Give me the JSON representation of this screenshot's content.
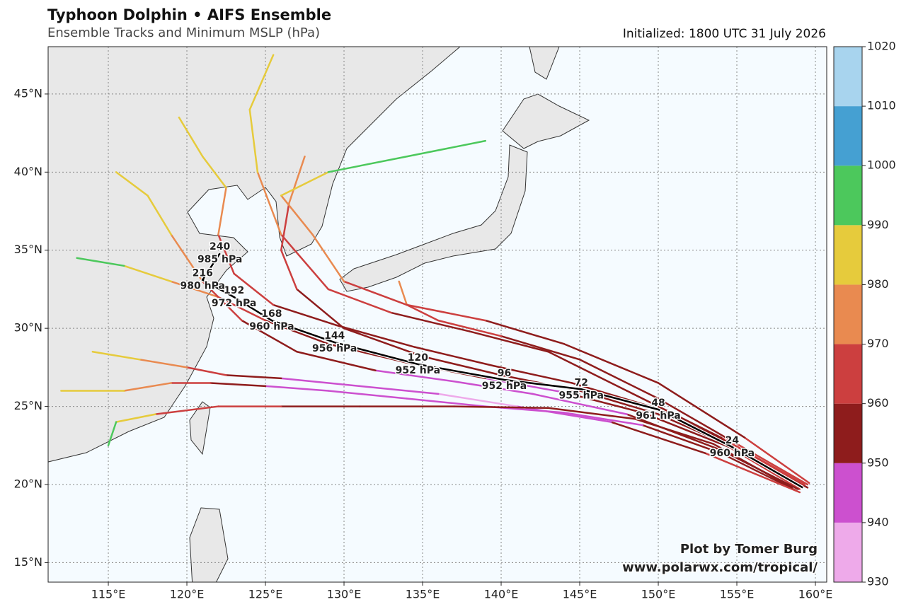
{
  "header": {
    "title": "Typhoon Dolphin • AIFS Ensemble",
    "subtitle": "Ensemble Tracks and Minimum MSLP (hPa)",
    "initialized": "Initialized: 1800 UTC 31 July 2026"
  },
  "credit": [
    "Plot by Tomer Burg",
    "www.polarwx.com/tropical/"
  ],
  "map": {
    "lon_range": [
      111.17,
      160.72
    ],
    "lat_range": [
      13.75,
      48.03
    ],
    "lon_ticks": [
      {
        "value": 115,
        "label": "115°E"
      },
      {
        "value": 120,
        "label": "120°E"
      },
      {
        "value": 125,
        "label": "125°E"
      },
      {
        "value": 130,
        "label": "130°E"
      },
      {
        "value": 135,
        "label": "135°E"
      },
      {
        "value": 140,
        "label": "140°E"
      },
      {
        "value": 145,
        "label": "145°E"
      },
      {
        "value": 150,
        "label": "150°E"
      },
      {
        "value": 155,
        "label": "155°E"
      },
      {
        "value": 160,
        "label": "160°E"
      }
    ],
    "lat_ticks": [
      {
        "value": 15,
        "label": "15°N"
      },
      {
        "value": 20,
        "label": "20°N"
      },
      {
        "value": 25,
        "label": "25°N"
      },
      {
        "value": 30,
        "label": "30°N"
      },
      {
        "value": 35,
        "label": "35°N"
      },
      {
        "value": 40,
        "label": "40°N"
      },
      {
        "value": 45,
        "label": "45°N"
      }
    ]
  },
  "colorbar": {
    "bounds": [
      930,
      940,
      950,
      960,
      970,
      980,
      990,
      1000,
      1010,
      1020
    ],
    "colors": [
      "#eeaaea",
      "#cc50cf",
      "#8e1c1c",
      "#cc3f3f",
      "#e98a50",
      "#e6cb3c",
      "#4cc85c",
      "#45a0d2",
      "#a8d4ee"
    ]
  },
  "ensemble": [
    {
      "lon": [
        159.5,
        155,
        150,
        145,
        140,
        135,
        130,
        127,
        126,
        126.5,
        127.5
      ],
      "lat": [
        19.8,
        22.3,
        24.5,
        26,
        27,
        28.2,
        30,
        32.5,
        35,
        38,
        41
      ],
      "pressure": [
        958,
        955,
        952,
        950,
        952,
        955,
        958,
        962,
        968,
        978,
        990
      ]
    },
    {
      "lon": [
        159.3,
        154,
        148,
        143,
        138,
        133,
        129,
        126,
        124.5,
        124,
        125.5
      ],
      "lat": [
        20,
        23,
        26,
        28.5,
        29.8,
        31,
        32.5,
        36,
        40,
        44,
        47.5
      ],
      "pressure": [
        960,
        955,
        952,
        955,
        958,
        962,
        968,
        975,
        983,
        988,
        985
      ]
    },
    {
      "lon": [
        159,
        154.5,
        149,
        144,
        139,
        134,
        129,
        125,
        122,
        119,
        116,
        113
      ],
      "lat": [
        19.7,
        22.4,
        24.6,
        25.9,
        26.8,
        27.8,
        29,
        30.5,
        32,
        33,
        34,
        34.5
      ],
      "pressure": [
        960,
        956,
        950,
        948,
        950,
        953,
        957,
        961,
        970,
        982,
        990,
        995
      ]
    },
    {
      "lon": [
        158.8,
        154,
        149,
        144,
        139,
        134,
        129,
        125,
        121.5,
        119,
        116,
        112
      ],
      "lat": [
        19.6,
        22,
        23.8,
        24.6,
        25,
        25.5,
        26,
        26.3,
        26.5,
        26.5,
        26,
        26
      ],
      "pressure": [
        958,
        952,
        946,
        942,
        940,
        943,
        948,
        955,
        962,
        975,
        985,
        992
      ]
    },
    {
      "lon": [
        159,
        153,
        147,
        141,
        136,
        131,
        126,
        122.5,
        120,
        117,
        114
      ],
      "lat": [
        19.5,
        22,
        24,
        25,
        25.8,
        26.3,
        26.8,
        27,
        27.5,
        28,
        28.5
      ],
      "pressure": [
        960,
        952,
        945,
        938,
        942,
        947,
        954,
        963,
        976,
        985,
        991
      ]
    },
    {
      "lon": [
        158.5,
        153.5,
        148.5,
        143,
        137,
        131,
        126,
        122,
        118,
        115.5,
        115
      ],
      "lat": [
        19.8,
        22.6,
        24.2,
        24.9,
        25,
        25,
        25,
        25,
        24.5,
        24,
        22.5
      ],
      "pressure": [
        958,
        954,
        950,
        950,
        954,
        958,
        962,
        968,
        980,
        990,
        992
      ]
    },
    {
      "lon": [
        159.5,
        155,
        150,
        145,
        140,
        136,
        134,
        133.5
      ],
      "lat": [
        20,
        22.6,
        25.5,
        28,
        29.5,
        30.5,
        31.5,
        33
      ],
      "pressure": [
        961,
        958,
        955,
        958,
        962,
        966,
        972,
        978
      ]
    },
    {
      "lon": [
        159.6,
        155.5,
        150,
        144,
        139,
        134,
        130,
        128,
        126,
        129,
        134,
        139
      ],
      "lat": [
        20.1,
        23,
        26.5,
        29,
        30.5,
        31.5,
        33,
        36,
        38.5,
        40,
        41,
        42
      ],
      "pressure": [
        962,
        958,
        955,
        958,
        962,
        967,
        972,
        978,
        985,
        990,
        993,
        994
      ]
    },
    {
      "lon": [
        159.2,
        154.5,
        149.5,
        144.5,
        139.5,
        134.5,
        129.5,
        125.5,
        123,
        122,
        122.5,
        121,
        119.5
      ],
      "lat": [
        19.9,
        22.7,
        25,
        26.5,
        27.6,
        28.8,
        30.2,
        31.5,
        33.5,
        36,
        39,
        41,
        43.5
      ],
      "pressure": [
        960,
        956,
        952,
        950,
        952,
        955,
        958,
        962,
        968,
        975,
        982,
        986,
        990
      ]
    },
    {
      "lon": [
        158.9,
        154,
        148,
        142,
        137,
        132,
        127,
        123.5,
        121,
        119,
        117.5,
        115.5
      ],
      "lat": [
        19.7,
        22.2,
        24.5,
        25.8,
        26.6,
        27.3,
        28.5,
        30.5,
        33,
        36,
        38.5,
        40
      ],
      "pressure": [
        959,
        954,
        948,
        946,
        948,
        952,
        957,
        963,
        972,
        980,
        986,
        990
      ]
    }
  ],
  "mean_track": {
    "lon": [
      159.2,
      154.7,
      150,
      145.1,
      140.2,
      134.7,
      129.4,
      125.4,
      123,
      121,
      122.1
    ],
    "lat": [
      19.8,
      22.4,
      24.8,
      26.1,
      26.7,
      27.7,
      29.1,
      30.5,
      32,
      33.1,
      34.8
    ],
    "labels": [
      {
        "point": 1,
        "hour": 24,
        "pressure": 960,
        "pressure_label": "960 hPa"
      },
      {
        "point": 2,
        "hour": 48,
        "pressure": 961,
        "pressure_label": "961 hPa"
      },
      {
        "point": 3,
        "hour": 72,
        "pressure": 955,
        "pressure_label": "955 hPa"
      },
      {
        "point": 4,
        "hour": 96,
        "pressure": 952,
        "pressure_label": "952 hPa"
      },
      {
        "point": 5,
        "hour": 120,
        "pressure": 952,
        "pressure_label": "952 hPa"
      },
      {
        "point": 6,
        "hour": 144,
        "pressure": 956,
        "pressure_label": "956 hPa"
      },
      {
        "point": 7,
        "hour": 168,
        "pressure": 960,
        "pressure_label": "960 hPa"
      },
      {
        "point": 8,
        "hour": 192,
        "pressure": 972,
        "pressure_label": "972 hPa"
      },
      {
        "point": 9,
        "hour": 216,
        "pressure": 980,
        "pressure_label": "980 hPa"
      },
      {
        "point": 10,
        "hour": 240,
        "pressure": 985,
        "pressure_label": "985 hPa"
      }
    ]
  }
}
